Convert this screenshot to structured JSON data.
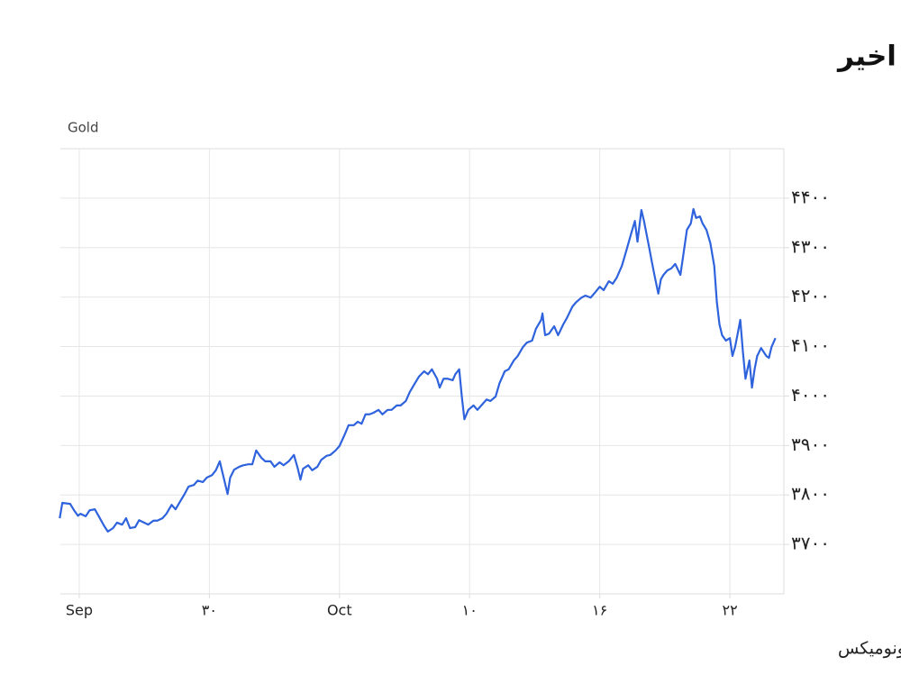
{
  "chart_data": {
    "type": "line",
    "title": "روند طلای جهانی در یک ماه اخیر",
    "y_label": "Gold",
    "source": "منبع: تریدینگ اکونومیکس",
    "xlim": [
      0.855,
      6.415
    ],
    "xticks": [
      {
        "value": 1,
        "label": "Sep"
      },
      {
        "value": 2,
        "label": "۳۰"
      },
      {
        "value": 3,
        "label": "Oct"
      },
      {
        "value": 4,
        "label": "۱۰"
      },
      {
        "value": 5,
        "label": "۱۶"
      },
      {
        "value": 6,
        "label": "۲۲"
      }
    ],
    "ylim": [
      3600,
      4500
    ],
    "yticks": [
      {
        "value": 3700,
        "label": "۳۷۰۰"
      },
      {
        "value": 3800,
        "label": "۳۸۰۰"
      },
      {
        "value": 3900,
        "label": "۳۹۰۰"
      },
      {
        "value": 4000,
        "label": "۴۰۰۰"
      },
      {
        "value": 4100,
        "label": "۴۱۰۰"
      },
      {
        "value": 4200,
        "label": "۴۲۰۰"
      },
      {
        "value": 4300,
        "label": "۴۳۰۰"
      },
      {
        "value": 4400,
        "label": "۴۴۰۰"
      }
    ],
    "grid": true,
    "x": [
      0.85,
      0.87,
      0.93,
      0.96,
      0.99,
      1.01,
      1.05,
      1.08,
      1.12,
      1.15,
      1.19,
      1.22,
      1.26,
      1.29,
      1.33,
      1.36,
      1.39,
      1.43,
      1.46,
      1.5,
      1.53,
      1.57,
      1.6,
      1.64,
      1.67,
      1.71,
      1.74,
      1.78,
      1.81,
      1.84,
      1.88,
      1.91,
      1.95,
      1.98,
      2.02,
      2.05,
      2.08,
      2.11,
      2.14,
      2.16,
      2.19,
      2.23,
      2.26,
      2.3,
      2.33,
      2.36,
      2.4,
      2.43,
      2.47,
      2.5,
      2.54,
      2.57,
      2.61,
      2.65,
      2.68,
      2.7,
      2.72,
      2.76,
      2.79,
      2.83,
      2.86,
      2.9,
      2.93,
      2.97,
      3.0,
      3.04,
      3.07,
      3.11,
      3.14,
      3.17,
      3.2,
      3.23,
      3.26,
      3.3,
      3.33,
      3.37,
      3.4,
      3.44,
      3.47,
      3.51,
      3.54,
      3.58,
      3.61,
      3.65,
      3.68,
      3.71,
      3.75,
      3.77,
      3.8,
      3.83,
      3.87,
      3.89,
      3.92,
      3.94,
      3.96,
      3.99,
      4.03,
      4.06,
      4.1,
      4.13,
      4.16,
      4.2,
      4.23,
      4.27,
      4.3,
      4.34,
      4.37,
      4.41,
      4.44,
      4.48,
      4.51,
      4.55,
      4.56,
      4.58,
      4.61,
      4.65,
      4.68,
      4.72,
      4.75,
      4.79,
      4.82,
      4.86,
      4.89,
      4.93,
      4.96,
      5.0,
      5.03,
      5.07,
      5.1,
      5.13,
      5.17,
      5.2,
      5.24,
      5.27,
      5.29,
      5.32,
      5.34,
      5.38,
      5.4,
      5.42,
      5.45,
      5.47,
      5.49,
      5.52,
      5.55,
      5.58,
      5.62,
      5.64,
      5.67,
      5.7,
      5.72,
      5.74,
      5.77,
      5.79,
      5.82,
      5.85,
      5.88,
      5.9,
      5.92,
      5.94,
      5.97,
      6.0,
      6.02,
      6.04,
      6.06,
      6.08,
      6.1,
      6.12,
      6.15,
      6.17,
      6.19,
      6.21,
      6.24,
      6.28,
      6.3,
      6.32,
      6.35
    ],
    "series": [
      {
        "name": "Gold",
        "color": "#2f63dd",
        "values": [
          3753,
          3784,
          3782,
          3769,
          3758,
          3762,
          3757,
          3769,
          3771,
          3757,
          3738,
          3726,
          3733,
          3744,
          3740,
          3753,
          3733,
          3735,
          3749,
          3744,
          3740,
          3748,
          3748,
          3753,
          3762,
          3780,
          3771,
          3789,
          3802,
          3817,
          3820,
          3829,
          3826,
          3835,
          3840,
          3850,
          3868,
          3835,
          3802,
          3835,
          3851,
          3857,
          3860,
          3862,
          3862,
          3890,
          3875,
          3868,
          3868,
          3857,
          3866,
          3860,
          3868,
          3881,
          3853,
          3831,
          3853,
          3860,
          3850,
          3857,
          3871,
          3879,
          3881,
          3890,
          3899,
          3922,
          3941,
          3941,
          3948,
          3944,
          3963,
          3963,
          3966,
          3972,
          3963,
          3972,
          3972,
          3981,
          3981,
          3990,
          4008,
          4026,
          4039,
          4050,
          4044,
          4054,
          4035,
          4017,
          4035,
          4035,
          4032,
          4044,
          4054,
          3999,
          3953,
          3972,
          3981,
          3972,
          3984,
          3993,
          3990,
          3999,
          4026,
          4050,
          4054,
          4072,
          4081,
          4099,
          4108,
          4112,
          4136,
          4154,
          4167,
          4123,
          4126,
          4141,
          4123,
          4145,
          4159,
          4181,
          4190,
          4199,
          4203,
          4199,
          4208,
          4221,
          4214,
          4232,
          4227,
          4239,
          4263,
          4290,
          4327,
          4354,
          4312,
          4376,
          4354,
          4300,
          4272,
          4245,
          4207,
          4236,
          4245,
          4254,
          4258,
          4267,
          4245,
          4281,
          4336,
          4349,
          4378,
          4360,
          4363,
          4349,
          4336,
          4309,
          4263,
          4190,
          4145,
          4123,
          4112,
          4117,
          4081,
          4099,
          4126,
          4154,
          4090,
          4035,
          4072,
          4017,
          4054,
          4081,
          4097,
          4081,
          4077,
          4099,
          4117
        ]
      }
    ]
  }
}
